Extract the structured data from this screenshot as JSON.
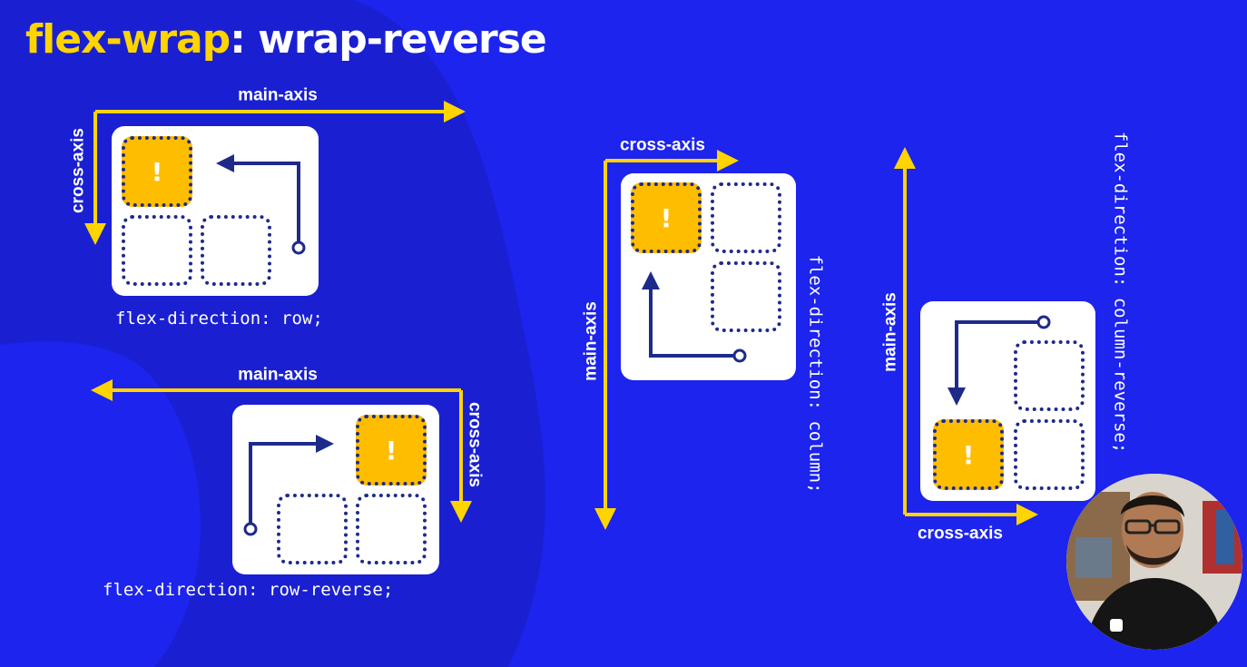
{
  "title": {
    "property": "flex-wrap",
    "value": ": wrap-reverse"
  },
  "colors": {
    "background": "#1c24ee",
    "background_shape": "#1a20d2",
    "accent": "#ffd400",
    "active_cell": "#ffbd00",
    "arrow": "#1e2a8a"
  },
  "active_marker": "!",
  "examples": {
    "row": {
      "main_axis": "main-axis",
      "cross_axis": "cross-axis",
      "caption": "flex-direction: row;"
    },
    "row_reverse": {
      "main_axis": "main-axis",
      "cross_axis": "cross-axis",
      "caption": "flex-direction: row-reverse;"
    },
    "column": {
      "main_axis": "main-axis",
      "cross_axis": "cross-axis",
      "caption": "flex-direction: column;"
    },
    "column_reverse": {
      "main_axis": "main-axis",
      "cross_axis": "cross-axis",
      "caption": "flex-direction: column-reverse;"
    }
  }
}
